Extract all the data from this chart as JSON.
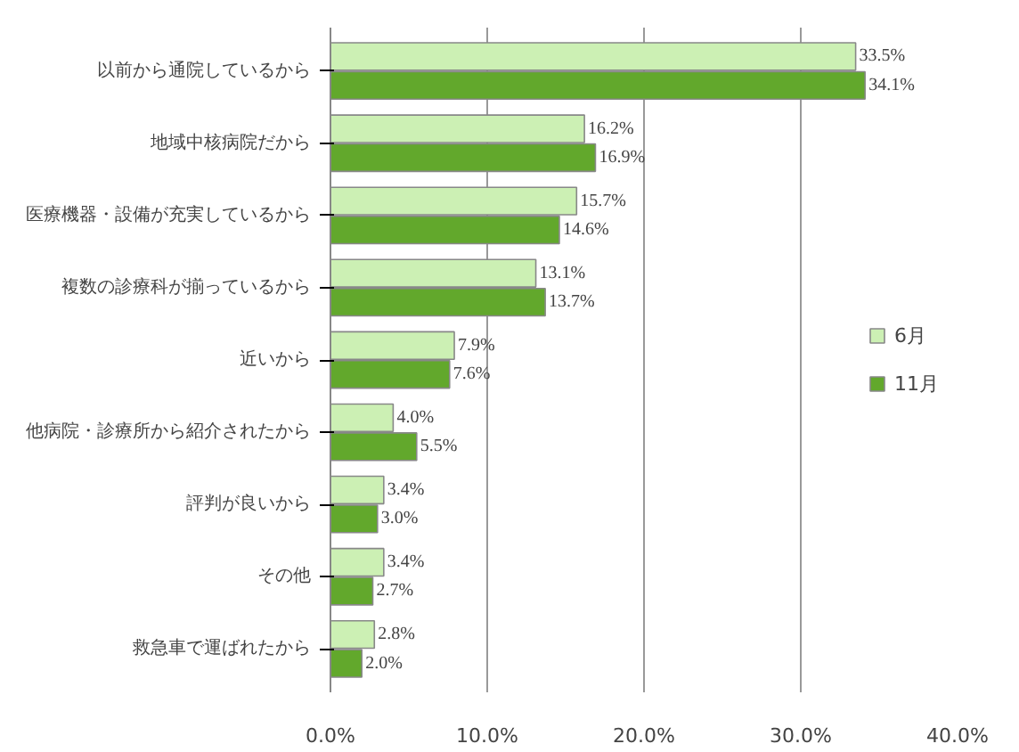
{
  "chart_data": {
    "type": "bar",
    "orientation": "horizontal",
    "categories": [
      "以前から通院しているから",
      "地域中核病院だから",
      "医療機器・設備が充実しているから",
      "複数の診療科が揃っているから",
      "近いから",
      "他病院・診療所から紹介されたから",
      "評判が良いから",
      "その他",
      "救急車で運ばれたから"
    ],
    "series": [
      {
        "name": "6月",
        "color": "#ccf0b4",
        "values": [
          33.5,
          16.2,
          15.7,
          13.1,
          7.9,
          4.0,
          3.4,
          3.4,
          2.8
        ],
        "value_labels": [
          "33.5%",
          "16.2%",
          "15.7%",
          "13.1%",
          "7.9%",
          "4.0%",
          "3.4%",
          "3.4%",
          "2.8%"
        ]
      },
      {
        "name": "11月",
        "color": "#62a82c",
        "values": [
          34.1,
          16.9,
          14.6,
          13.7,
          7.6,
          5.5,
          3.0,
          2.7,
          2.0
        ],
        "value_labels": [
          "34.1%",
          "16.9%",
          "14.6%",
          "13.7%",
          "7.6%",
          "5.5%",
          "3.0%",
          "2.7%",
          "2.0%"
        ]
      }
    ],
    "xlim": [
      0,
      40
    ],
    "xticks": [
      {
        "value": 0,
        "label": "0.0%"
      },
      {
        "value": 10,
        "label": "10.0%"
      },
      {
        "value": 20,
        "label": "20.0%"
      },
      {
        "value": 30,
        "label": "30.0%"
      },
      {
        "value": 40,
        "label": "40.0%"
      }
    ],
    "grid": "x",
    "legend": "right"
  }
}
